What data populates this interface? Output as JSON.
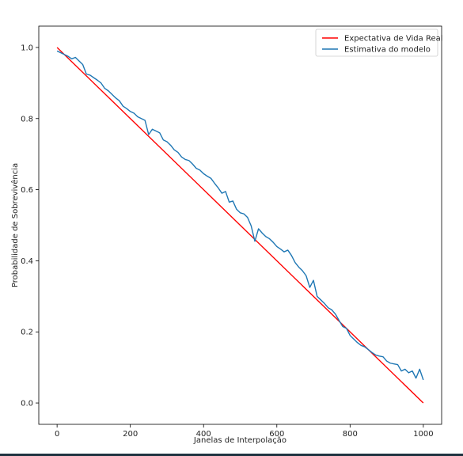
{
  "chart_data": {
    "type": "line",
    "title": "",
    "xlabel": "Janelas de Interpolação",
    "ylabel": "Probabilidade de Sobrevivência",
    "xlim": [
      -50,
      1050
    ],
    "ylim": [
      -0.06,
      1.06
    ],
    "x_ticks": [
      0,
      200,
      400,
      600,
      800,
      1000
    ],
    "y_ticks": [
      0.0,
      0.2,
      0.4,
      0.6,
      0.8,
      1.0
    ],
    "x_tick_labels": [
      "0",
      "200",
      "400",
      "600",
      "800",
      "1000"
    ],
    "y_tick_labels": [
      "0.0",
      "0.2",
      "0.4",
      "0.6",
      "0.8",
      "1.0"
    ],
    "grid": false,
    "legend_position": "top-right",
    "series": [
      {
        "name": "Expectativa de Vida Real",
        "color": "#ff0000",
        "x": [
          0,
          1000
        ],
        "y": [
          1.0,
          0.0
        ]
      },
      {
        "name": "Estimativa do modelo",
        "color": "#1f77b4",
        "x": [
          0,
          10,
          20,
          30,
          40,
          50,
          60,
          70,
          80,
          90,
          100,
          110,
          120,
          130,
          140,
          150,
          160,
          170,
          180,
          190,
          200,
          210,
          220,
          230,
          240,
          250,
          260,
          270,
          280,
          290,
          300,
          310,
          320,
          330,
          340,
          350,
          360,
          370,
          380,
          390,
          400,
          410,
          420,
          430,
          440,
          450,
          460,
          470,
          480,
          490,
          500,
          510,
          520,
          530,
          540,
          550,
          560,
          570,
          580,
          590,
          600,
          610,
          620,
          630,
          640,
          650,
          660,
          670,
          680,
          690,
          700,
          710,
          720,
          730,
          740,
          750,
          760,
          770,
          780,
          790,
          800,
          810,
          820,
          830,
          840,
          850,
          860,
          870,
          880,
          890,
          900,
          910,
          920,
          930,
          940,
          950,
          960,
          970,
          980,
          990,
          1000
        ],
        "y": [
          0.99,
          0.985,
          0.98,
          0.975,
          0.968,
          0.972,
          0.962,
          0.952,
          0.925,
          0.922,
          0.915,
          0.908,
          0.9,
          0.885,
          0.878,
          0.868,
          0.858,
          0.85,
          0.835,
          0.828,
          0.82,
          0.815,
          0.805,
          0.8,
          0.795,
          0.755,
          0.77,
          0.765,
          0.76,
          0.74,
          0.735,
          0.725,
          0.712,
          0.705,
          0.692,
          0.685,
          0.682,
          0.672,
          0.66,
          0.655,
          0.645,
          0.638,
          0.632,
          0.618,
          0.605,
          0.59,
          0.595,
          0.565,
          0.568,
          0.545,
          0.535,
          0.532,
          0.522,
          0.498,
          0.455,
          0.49,
          0.478,
          0.468,
          0.462,
          0.452,
          0.44,
          0.433,
          0.425,
          0.43,
          0.415,
          0.395,
          0.382,
          0.372,
          0.358,
          0.325,
          0.345,
          0.3,
          0.29,
          0.28,
          0.268,
          0.262,
          0.25,
          0.232,
          0.215,
          0.21,
          0.19,
          0.18,
          0.17,
          0.162,
          0.158,
          0.15,
          0.142,
          0.135,
          0.132,
          0.13,
          0.118,
          0.112,
          0.11,
          0.108,
          0.09,
          0.095,
          0.085,
          0.09,
          0.07,
          0.095,
          0.065
        ]
      }
    ]
  }
}
